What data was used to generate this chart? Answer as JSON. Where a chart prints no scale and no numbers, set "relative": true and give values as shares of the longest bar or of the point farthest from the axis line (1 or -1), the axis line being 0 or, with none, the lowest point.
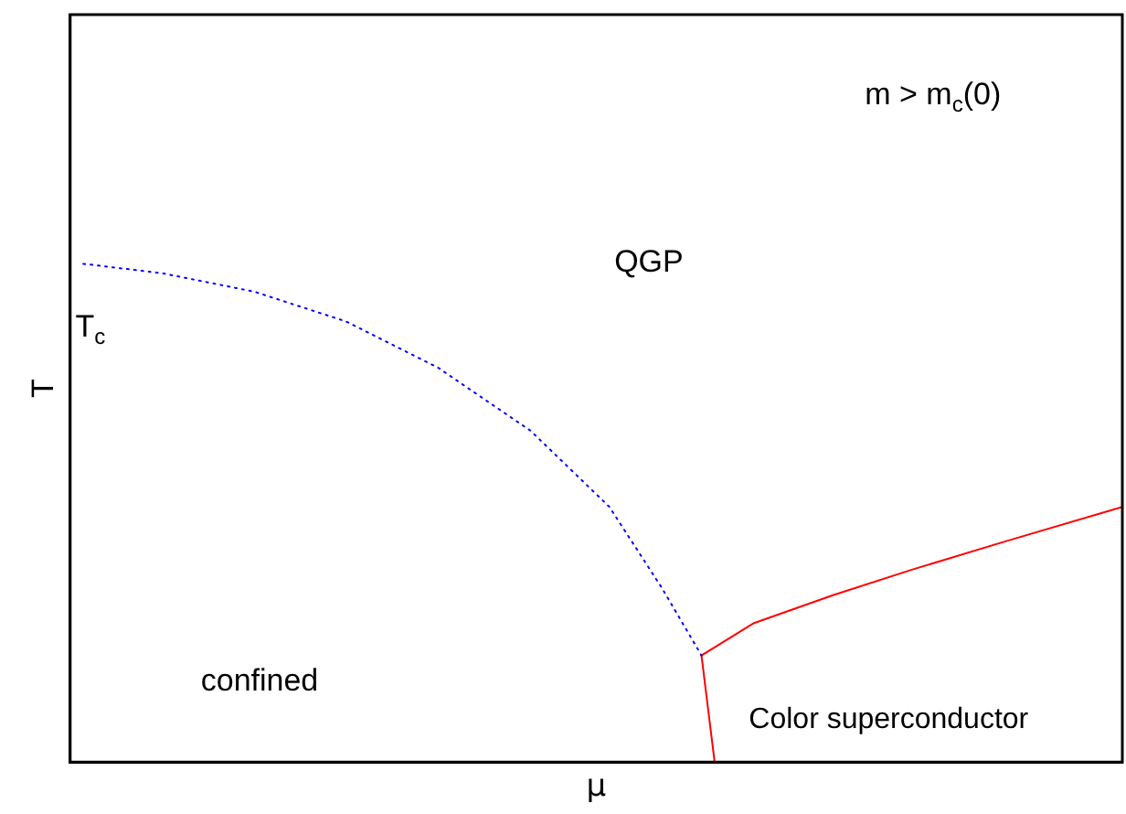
{
  "chart_data": {
    "type": "line",
    "relative": true,
    "xlabel": "μ",
    "ylabel": "T",
    "legend": false,
    "grid": false,
    "marker": "none",
    "categories": [
      null,
      null,
      null,
      null,
      null,
      null,
      null,
      null,
      null,
      null,
      null,
      null,
      null,
      null,
      null,
      null,
      null,
      null,
      null,
      null,
      null,
      null,
      null,
      null,
      null,
      null,
      null,
      null,
      null,
      null,
      null,
      null,
      null,
      null,
      null,
      null,
      null,
      null,
      null,
      null,
      null,
      null,
      null,
      null,
      null,
      null,
      null,
      null,
      null,
      null,
      null,
      null,
      null,
      null,
      null,
      null,
      null,
      null,
      null,
      null,
      null,
      null,
      null,
      null,
      null,
      null,
      null,
      null,
      null,
      null,
      null,
      null,
      null,
      null,
      null,
      null,
      null,
      null,
      null,
      null,
      null
    ],
    "series": [
      {
        "color": "#0000ff",
        "line_style": "dotted",
        "values": [
          null,
          1,
          null,
          null,
          null,
          null,
          null,
          0.981,
          null,
          null,
          null,
          null,
          null,
          null,
          0.944,
          null,
          null,
          null,
          null,
          null,
          null,
          0.884,
          null,
          null,
          null,
          null,
          null,
          null,
          0.791,
          null,
          null,
          null,
          null,
          null,
          null,
          0.665,
          null,
          null,
          null,
          null,
          null,
          0.512,
          null,
          null,
          null,
          0.349,
          null,
          null,
          0.214,
          null,
          null,
          null,
          null,
          null,
          null,
          null,
          null,
          null,
          null,
          null,
          null,
          null,
          null,
          null,
          null,
          null,
          null,
          null,
          null,
          null,
          null,
          null,
          null,
          null,
          null,
          null,
          null,
          null,
          null,
          null,
          null
        ]
      },
      {
        "color": "#ff0000",
        "line_style": "solid",
        "values": [
          null,
          null,
          null,
          null,
          null,
          null,
          null,
          null,
          null,
          null,
          null,
          null,
          null,
          null,
          null,
          null,
          null,
          null,
          null,
          null,
          null,
          null,
          null,
          null,
          null,
          null,
          null,
          null,
          null,
          null,
          null,
          null,
          null,
          null,
          null,
          null,
          null,
          null,
          null,
          null,
          null,
          null,
          null,
          null,
          null,
          null,
          null,
          null,
          0.214,
          0,
          null,
          null,
          null,
          null,
          null,
          null,
          null,
          null,
          null,
          null,
          null,
          null,
          null,
          null,
          null,
          null,
          null,
          null,
          null,
          null,
          null,
          null,
          null,
          null,
          null,
          null,
          null,
          null,
          null,
          null,
          null
        ]
      },
      {
        "color": "#ff0000",
        "line_style": "solid",
        "values": [
          null,
          null,
          null,
          null,
          null,
          null,
          null,
          null,
          null,
          null,
          null,
          null,
          null,
          null,
          null,
          null,
          null,
          null,
          null,
          null,
          null,
          null,
          null,
          null,
          null,
          null,
          null,
          null,
          null,
          null,
          null,
          null,
          null,
          null,
          null,
          null,
          null,
          null,
          null,
          null,
          null,
          null,
          null,
          null,
          null,
          null,
          null,
          null,
          0.214,
          null,
          null,
          null,
          0.279,
          null,
          null,
          null,
          null,
          null,
          0.335,
          null,
          null,
          null,
          null,
          null,
          0.386,
          null,
          null,
          null,
          null,
          null,
          null,
          0.442,
          null,
          null,
          null,
          null,
          null,
          null,
          null,
          null,
          0.512
        ]
      }
    ],
    "annotations": [
      "T$_{c}$",
      "m > m$_{c}$(0)",
      "QGP",
      "confined",
      "Color superconductor"
    ]
  }
}
